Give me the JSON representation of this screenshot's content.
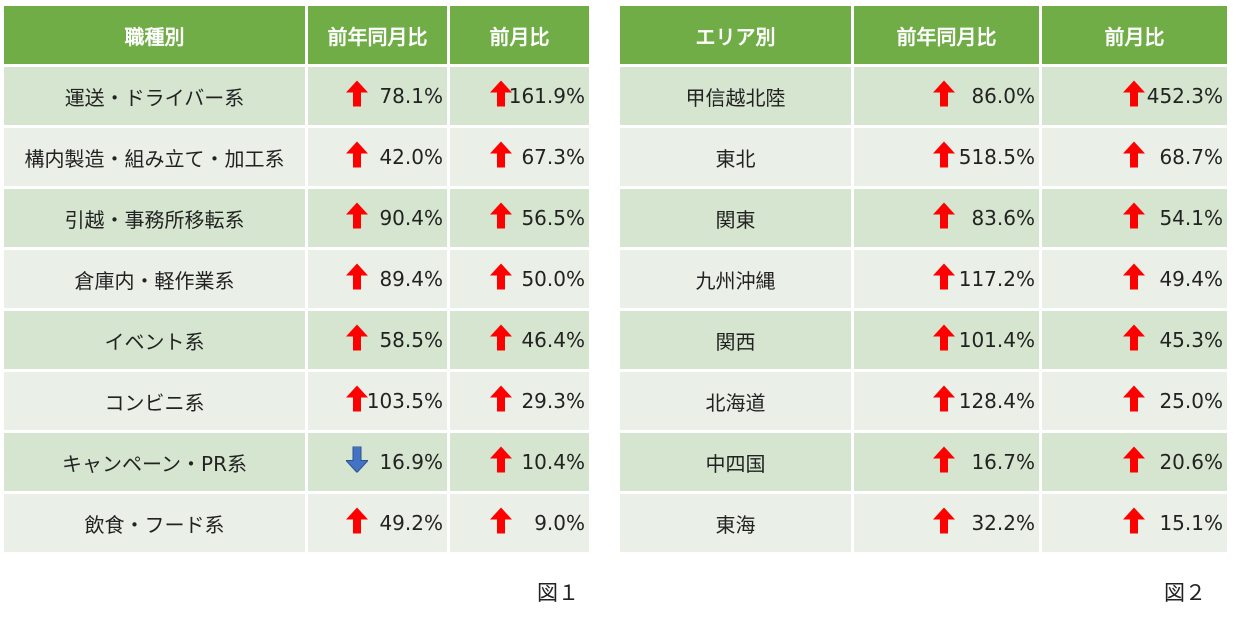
{
  "table1": {
    "headers": [
      "職種別",
      "前年同月比",
      "前月比"
    ],
    "rows": [
      {
        "label": "運送・ドライバー系",
        "yoy": "78.1%",
        "yoy_dir": "up",
        "mom": "161.9%",
        "mom_dir": "up"
      },
      {
        "label": "構内製造・組み立て・加工系",
        "yoy": "42.0%",
        "yoy_dir": "up",
        "mom": "67.3%",
        "mom_dir": "up"
      },
      {
        "label": "引越・事務所移転系",
        "yoy": "90.4%",
        "yoy_dir": "up",
        "mom": "56.5%",
        "mom_dir": "up"
      },
      {
        "label": "倉庫内・軽作業系",
        "yoy": "89.4%",
        "yoy_dir": "up",
        "mom": "50.0%",
        "mom_dir": "up"
      },
      {
        "label": "イベント系",
        "yoy": "58.5%",
        "yoy_dir": "up",
        "mom": "46.4%",
        "mom_dir": "up"
      },
      {
        "label": "コンビニ系",
        "yoy": "103.5%",
        "yoy_dir": "up",
        "mom": "29.3%",
        "mom_dir": "up"
      },
      {
        "label": "キャンペーン・PR系",
        "yoy": "16.9%",
        "yoy_dir": "down",
        "mom": "10.4%",
        "mom_dir": "up"
      },
      {
        "label": "飲食・フード系",
        "yoy": "49.2%",
        "yoy_dir": "up",
        "mom": "9.0%",
        "mom_dir": "up"
      }
    ],
    "caption": "図１"
  },
  "table2": {
    "headers": [
      "エリア別",
      "前年同月比",
      "前月比"
    ],
    "rows": [
      {
        "label": "甲信越北陸",
        "yoy": "86.0%",
        "yoy_dir": "up",
        "mom": "452.3%",
        "mom_dir": "up"
      },
      {
        "label": "東北",
        "yoy": "518.5%",
        "yoy_dir": "up",
        "mom": "68.7%",
        "mom_dir": "up"
      },
      {
        "label": "関東",
        "yoy": "83.6%",
        "yoy_dir": "up",
        "mom": "54.1%",
        "mom_dir": "up"
      },
      {
        "label": "九州沖縄",
        "yoy": "117.2%",
        "yoy_dir": "up",
        "mom": "49.4%",
        "mom_dir": "up"
      },
      {
        "label": "関西",
        "yoy": "101.4%",
        "yoy_dir": "up",
        "mom": "45.3%",
        "mom_dir": "up"
      },
      {
        "label": "北海道",
        "yoy": "128.4%",
        "yoy_dir": "up",
        "mom": "25.0%",
        "mom_dir": "up"
      },
      {
        "label": "中四国",
        "yoy": "16.7%",
        "yoy_dir": "up",
        "mom": "20.6%",
        "mom_dir": "up"
      },
      {
        "label": "東海",
        "yoy": "32.2%",
        "yoy_dir": "up",
        "mom": "15.1%",
        "mom_dir": "up"
      }
    ],
    "caption": "図２"
  },
  "colors": {
    "header_bg": "#70ad47",
    "row_dark": "#d6e5cf",
    "row_light": "#eaf0e7",
    "arrow_up": "#ff0000",
    "arrow_down": "#4472c4"
  }
}
